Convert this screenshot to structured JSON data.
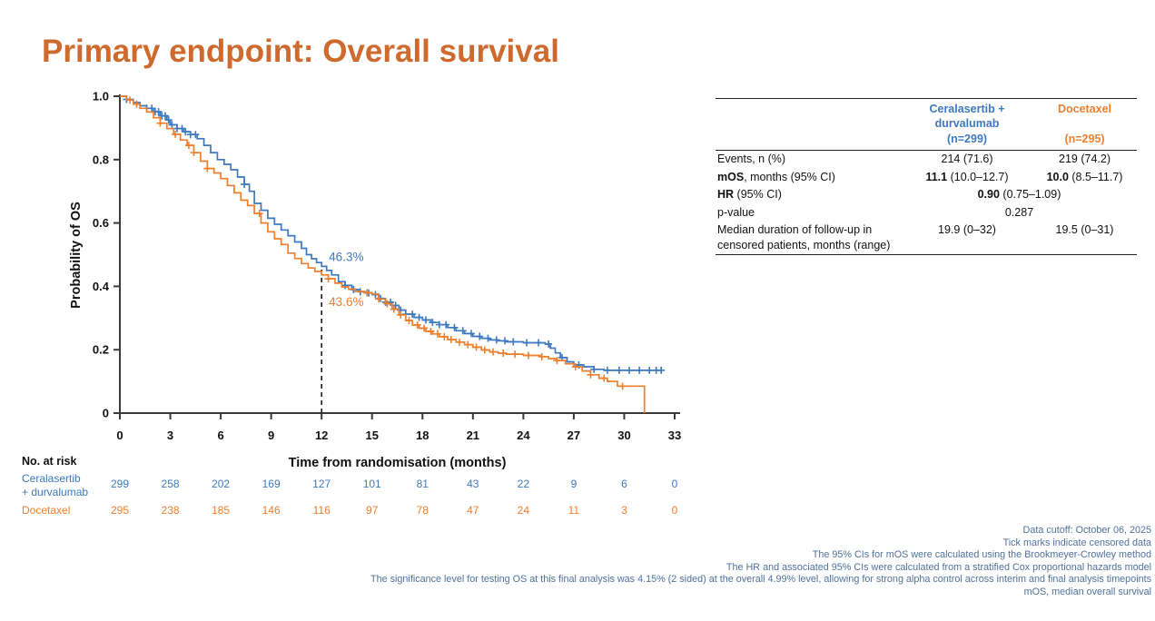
{
  "title": {
    "text": "Primary endpoint: Overall survival"
  },
  "colors": {
    "title_orange": "#CE6A2E",
    "blue": "#3E79BE",
    "orange": "#EE7F2D",
    "axis": "#3A3A3A",
    "text_black": "#111111",
    "footnote_blue": "#50719B"
  },
  "chart_data": {
    "type": "line",
    "subtype": "kaplan-meier-step",
    "title": "",
    "xlabel": "Time from randomisation (months)",
    "ylabel": "Probability of OS",
    "xlim": [
      0,
      33
    ],
    "ylim": [
      0,
      1
    ],
    "xticks": [
      0,
      3,
      6,
      9,
      12,
      15,
      18,
      21,
      24,
      27,
      30,
      33
    ],
    "ytick_values": [
      1.0,
      0.8,
      0.6,
      0.4,
      0.2,
      0
    ],
    "ytick_labels": [
      "1.0",
      "0.8",
      "0.6",
      "0.4",
      "0.2",
      "0"
    ],
    "grid": false,
    "legend_position": "none",
    "reference_line_x": 12,
    "no_at_risk_label": "No. at risk",
    "series": [
      {
        "name": "Ceralasertib + durvalumab",
        "risk_label_lines": [
          "Ceralasertib",
          "+ durvalumab"
        ],
        "color_key": "blue",
        "annotation": "46.3%",
        "annotation_value": 0.463,
        "n_at_risk": [
          299,
          258,
          202,
          169,
          127,
          101,
          81,
          43,
          22,
          9,
          6,
          0
        ],
        "points": [
          [
            0,
            1.0
          ],
          [
            0.4,
            0.99
          ],
          [
            0.8,
            0.98
          ],
          [
            1.2,
            0.97
          ],
          [
            1.6,
            0.962
          ],
          [
            2.0,
            0.951
          ],
          [
            2.4,
            0.938
          ],
          [
            2.8,
            0.925
          ],
          [
            3.0,
            0.91
          ],
          [
            3.4,
            0.898
          ],
          [
            3.8,
            0.888
          ],
          [
            4.2,
            0.879
          ],
          [
            4.6,
            0.866
          ],
          [
            5.0,
            0.845
          ],
          [
            5.4,
            0.822
          ],
          [
            5.8,
            0.8
          ],
          [
            6.2,
            0.785
          ],
          [
            6.6,
            0.768
          ],
          [
            7.0,
            0.745
          ],
          [
            7.4,
            0.722
          ],
          [
            7.7,
            0.7
          ],
          [
            8.0,
            0.662
          ],
          [
            8.4,
            0.64
          ],
          [
            8.8,
            0.615
          ],
          [
            9.2,
            0.596
          ],
          [
            9.6,
            0.578
          ],
          [
            10.0,
            0.56
          ],
          [
            10.4,
            0.54
          ],
          [
            10.8,
            0.52
          ],
          [
            11.1,
            0.5
          ],
          [
            11.4,
            0.487
          ],
          [
            11.7,
            0.475
          ],
          [
            12.0,
            0.463
          ],
          [
            12.3,
            0.45
          ],
          [
            12.6,
            0.436
          ],
          [
            13.0,
            0.415
          ],
          [
            13.4,
            0.403
          ],
          [
            13.8,
            0.39
          ],
          [
            14.2,
            0.383
          ],
          [
            14.6,
            0.379
          ],
          [
            15.0,
            0.374
          ],
          [
            15.4,
            0.362
          ],
          [
            15.8,
            0.35
          ],
          [
            16.2,
            0.34
          ],
          [
            16.6,
            0.325
          ],
          [
            17.0,
            0.312
          ],
          [
            17.5,
            0.302
          ],
          [
            18.0,
            0.294
          ],
          [
            18.5,
            0.286
          ],
          [
            19.0,
            0.279
          ],
          [
            19.5,
            0.27
          ],
          [
            20.0,
            0.26
          ],
          [
            20.5,
            0.251
          ],
          [
            21.0,
            0.242
          ],
          [
            21.5,
            0.236
          ],
          [
            22.0,
            0.231
          ],
          [
            22.5,
            0.228
          ],
          [
            23.0,
            0.225
          ],
          [
            24.0,
            0.222
          ],
          [
            25.3,
            0.218
          ],
          [
            25.6,
            0.205
          ],
          [
            25.9,
            0.19
          ],
          [
            26.2,
            0.175
          ],
          [
            26.6,
            0.162
          ],
          [
            27.0,
            0.152
          ],
          [
            27.6,
            0.146
          ],
          [
            28.2,
            0.138
          ],
          [
            28.8,
            0.135
          ],
          [
            32.3,
            0.135
          ]
        ],
        "censor_times": [
          0.4,
          1.6,
          1.9,
          2.1,
          2.3,
          2.5,
          2.7,
          2.9,
          3.1,
          3.4,
          3.7,
          3.9,
          4.2,
          4.5,
          7.4,
          13.4,
          13.9,
          14.3,
          14.8,
          15.2,
          15.5,
          15.8,
          16.1,
          16.4,
          16.7,
          17.0,
          17.4,
          17.8,
          18.2,
          18.6,
          19.0,
          19.4,
          19.9,
          20.4,
          20.9,
          21.4,
          21.9,
          22.4,
          22.9,
          23.4,
          24.2,
          24.9,
          25.5,
          26.3,
          27.3,
          28.2,
          29.0,
          29.7,
          30.3,
          30.9,
          31.5,
          31.9,
          32.2
        ]
      },
      {
        "name": "Docetaxel",
        "risk_label_lines": [
          "Docetaxel"
        ],
        "color_key": "orange",
        "annotation": "43.6%",
        "annotation_value": 0.436,
        "n_at_risk": [
          295,
          238,
          185,
          146,
          116,
          97,
          78,
          47,
          24,
          11,
          3,
          0
        ],
        "points": [
          [
            0,
            1.0
          ],
          [
            0.4,
            0.988
          ],
          [
            0.8,
            0.975
          ],
          [
            1.2,
            0.962
          ],
          [
            1.6,
            0.95
          ],
          [
            2.0,
            0.932
          ],
          [
            2.4,
            0.915
          ],
          [
            2.8,
            0.898
          ],
          [
            3.2,
            0.88
          ],
          [
            3.6,
            0.862
          ],
          [
            4.0,
            0.845
          ],
          [
            4.4,
            0.822
          ],
          [
            4.8,
            0.795
          ],
          [
            5.2,
            0.772
          ],
          [
            5.6,
            0.758
          ],
          [
            6.0,
            0.74
          ],
          [
            6.4,
            0.718
          ],
          [
            6.8,
            0.695
          ],
          [
            7.2,
            0.672
          ],
          [
            7.6,
            0.655
          ],
          [
            8.0,
            0.63
          ],
          [
            8.4,
            0.6
          ],
          [
            8.8,
            0.572
          ],
          [
            9.2,
            0.55
          ],
          [
            9.6,
            0.532
          ],
          [
            10.0,
            0.505
          ],
          [
            10.4,
            0.488
          ],
          [
            10.8,
            0.472
          ],
          [
            11.2,
            0.458
          ],
          [
            11.6,
            0.447
          ],
          [
            12.0,
            0.436
          ],
          [
            12.4,
            0.424
          ],
          [
            12.8,
            0.41
          ],
          [
            13.2,
            0.398
          ],
          [
            13.6,
            0.391
          ],
          [
            14.0,
            0.384
          ],
          [
            14.5,
            0.38
          ],
          [
            15.0,
            0.376
          ],
          [
            15.4,
            0.36
          ],
          [
            15.8,
            0.345
          ],
          [
            16.2,
            0.328
          ],
          [
            16.6,
            0.31
          ],
          [
            17.0,
            0.292
          ],
          [
            17.4,
            0.278
          ],
          [
            17.8,
            0.268
          ],
          [
            18.2,
            0.258
          ],
          [
            18.6,
            0.25
          ],
          [
            19.0,
            0.241
          ],
          [
            19.5,
            0.232
          ],
          [
            20.0,
            0.224
          ],
          [
            20.5,
            0.216
          ],
          [
            21.0,
            0.208
          ],
          [
            21.5,
            0.199
          ],
          [
            22.0,
            0.193
          ],
          [
            22.5,
            0.189
          ],
          [
            23.0,
            0.186
          ],
          [
            24.0,
            0.182
          ],
          [
            25.0,
            0.178
          ],
          [
            25.5,
            0.172
          ],
          [
            26.0,
            0.166
          ],
          [
            26.5,
            0.156
          ],
          [
            27.0,
            0.146
          ],
          [
            27.5,
            0.133
          ],
          [
            28.0,
            0.121
          ],
          [
            28.5,
            0.11
          ],
          [
            29.0,
            0.1
          ],
          [
            29.6,
            0.085
          ],
          [
            31.2,
            0.085
          ],
          [
            31.2,
            0.0
          ]
        ],
        "censor_times": [
          0.6,
          1.0,
          2.4,
          3.3,
          4.1,
          4.4,
          5.2,
          8.3,
          12.4,
          14.7,
          15.4,
          15.9,
          16.3,
          16.7,
          17.2,
          17.7,
          18.1,
          18.5,
          18.9,
          19.3,
          19.7,
          20.2,
          20.7,
          21.2,
          21.7,
          22.2,
          22.8,
          23.5,
          24.3,
          25.1,
          26.0,
          27.1,
          28.0,
          28.8,
          29.9
        ]
      }
    ]
  },
  "stats_table": {
    "columns": [
      {
        "header_lines": [
          "Ceralasertib +",
          "durvalumab",
          "(n=299)"
        ],
        "color_key": "blue"
      },
      {
        "header_lines": [
          "Docetaxel",
          "",
          "(n=295)"
        ],
        "color_key": "orange"
      }
    ],
    "rows": [
      {
        "label": [
          {
            "t": "Events, n (%)"
          }
        ],
        "cells": [
          [
            {
              "t": "214 (71.6)"
            }
          ],
          [
            {
              "t": "219 (74.2)"
            }
          ]
        ]
      },
      {
        "label": [
          {
            "t": "mOS",
            "b": true
          },
          {
            "t": ", months (95% CI)"
          }
        ],
        "cells": [
          [
            {
              "t": "11.1",
              "b": true
            },
            {
              "t": " (10.0–12.7)"
            }
          ],
          [
            {
              "t": "10.0",
              "b": true
            },
            {
              "t": " (8.5–11.7)"
            }
          ]
        ]
      },
      {
        "label": [
          {
            "t": "HR",
            "b": true
          },
          {
            "t": " (95% CI)"
          }
        ],
        "span": [
          {
            "t": "0.90",
            "b": true
          },
          {
            "t": " (0.75–1.09)"
          }
        ]
      },
      {
        "label": [
          {
            "t": "p-value"
          }
        ],
        "span": [
          {
            "t": "0.287"
          }
        ]
      },
      {
        "label": [
          {
            "t": "Median duration of follow-up in censored patients, months (range)"
          }
        ],
        "cells": [
          [
            {
              "t": "19.9 (0–32)"
            }
          ],
          [
            {
              "t": "19.5 (0–31)"
            }
          ]
        ]
      }
    ]
  },
  "footnotes": [
    "Data cutoff: October 06, 2025",
    "Tick marks indicate censored data",
    "The 95% CIs for mOS were calculated using the Brookmeyer-Crowley method",
    "The HR and associated 95% CIs were calculated from a stratified Cox proportional hazards model",
    "The significance level for testing OS at this final analysis was 4.15% (2 sided) at the overall 4.99% level, allowing for strong alpha control across interim and final analysis timepoints",
    "mOS, median overall survival"
  ]
}
